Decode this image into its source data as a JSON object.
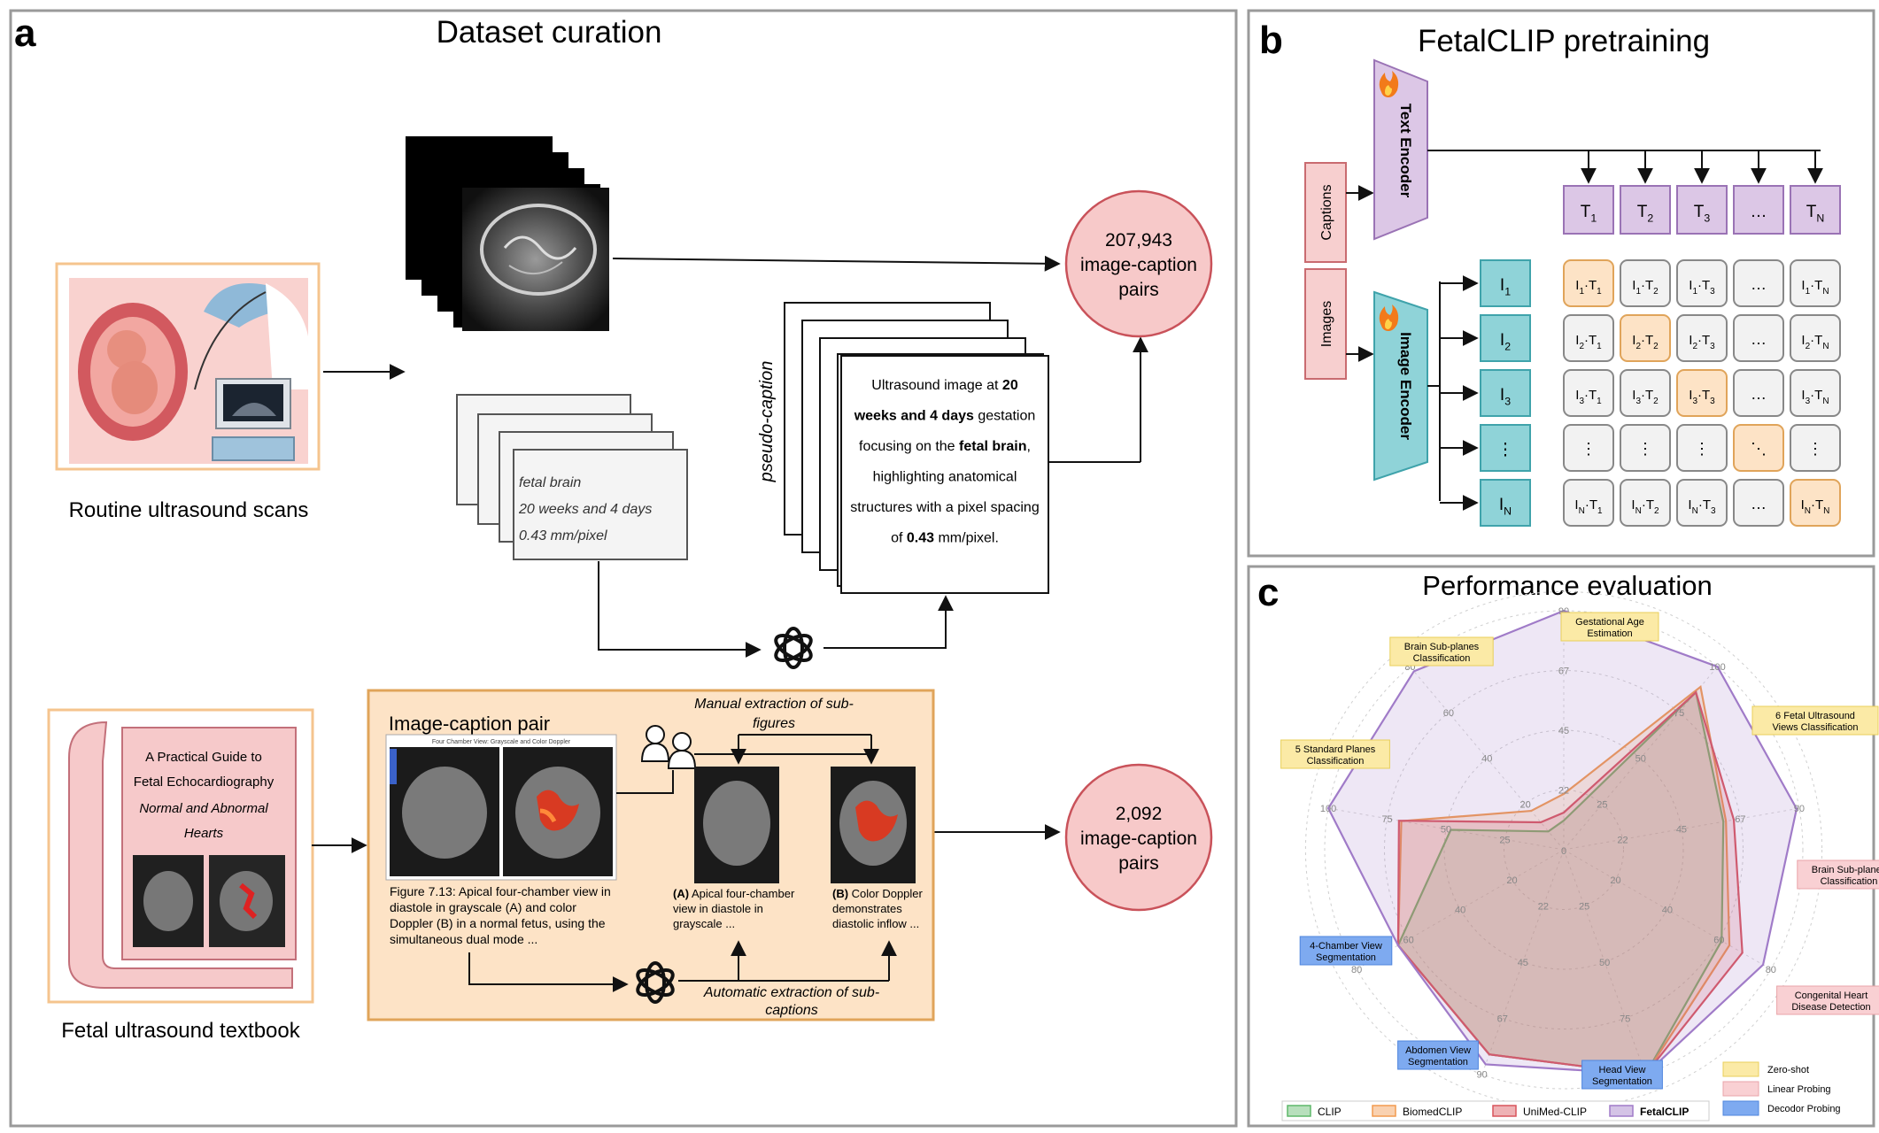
{
  "panel_a": {
    "letter": "a",
    "title": "Dataset curation",
    "routine_label": "Routine ultrasound scans",
    "textbook_label": "Fetal ultrasound textbook",
    "book_lines": [
      "A Practical Guide to",
      "Fetal Echocardiography",
      "Normal and Abnormal",
      "Hearts"
    ],
    "metadata_lines": [
      "fetal brain",
      "20 weeks and 4 days",
      "0.43 mm/pixel"
    ],
    "pseudo_caption_label": "pseudo-caption",
    "pseudo_caption_lines": [
      [
        {
          "t": "Ultrasound image at ",
          "b": false
        },
        {
          "t": "20",
          "b": true
        }
      ],
      [
        {
          "t": "weeks and 4 days",
          "b": true
        },
        {
          "t": " gestation",
          "b": false
        }
      ],
      [
        {
          "t": "focusing on the ",
          "b": false
        },
        {
          "t": "fetal brain",
          "b": true
        },
        {
          "t": ",",
          "b": false
        }
      ],
      [
        {
          "t": "highlighting anatomical",
          "b": false
        }
      ],
      [
        {
          "t": "structures with a pixel spacing",
          "b": false
        }
      ],
      [
        {
          "t": "of ",
          "b": false
        },
        {
          "t": "0.43",
          "b": true
        },
        {
          "t": " mm/pixel.",
          "b": false
        }
      ]
    ],
    "pairs_top": [
      "207,943",
      "image-caption",
      "pairs"
    ],
    "pairs_bottom": [
      "2,092",
      "image-caption",
      "pairs"
    ],
    "image_caption_pair_title": "Image-caption pair",
    "us_image_header": "Four Chamber View: Grayscale and Color Doppler",
    "figure_caption_lines": [
      "Figure 7.13: Apical four-chamber view in",
      "diastole in grayscale (A) and color",
      "Doppler (B) in a normal fetus, using the",
      "simultaneous dual mode ..."
    ],
    "manual_extraction_lines": [
      "Manual extraction of sub-",
      "figures"
    ],
    "automatic_extraction_lines": [
      "Automatic extraction of sub-",
      "captions"
    ],
    "sub_a_lines": [
      [
        {
          "t": "(A)",
          "b": true
        },
        {
          "t": " Apical four-chamber",
          "b": false
        }
      ],
      [
        {
          "t": "view in diastole in",
          "b": false
        }
      ],
      [
        {
          "t": "grayscale ...",
          "b": false
        }
      ]
    ],
    "sub_b_lines": [
      [
        {
          "t": "(B)",
          "b": true
        },
        {
          "t": " Color Doppler",
          "b": false
        }
      ],
      [
        {
          "t": "demonstrates",
          "b": false
        }
      ],
      [
        {
          "t": "diastolic inflow ...",
          "b": false
        }
      ]
    ]
  },
  "panel_b": {
    "letter": "b",
    "title": "FetalCLIP pretraining",
    "captions_label": "Captions",
    "images_label": "Images",
    "text_encoder_label": "Text Encoder",
    "image_encoder_label": "Image Encoder",
    "t_tokens": [
      [
        "T",
        "1"
      ],
      [
        "T",
        "2"
      ],
      [
        "T",
        "3"
      ],
      [
        "…",
        ""
      ],
      [
        "T",
        "N"
      ]
    ],
    "i_tokens": [
      [
        "I",
        "1"
      ],
      [
        "I",
        "2"
      ],
      [
        "I",
        "3"
      ],
      [
        "⋮",
        ""
      ],
      [
        "I",
        "N"
      ]
    ],
    "matrix_rows": [
      [
        {
          "l": "I",
          "ls": "1",
          "r": "T",
          "rs": "1",
          "hl": true
        },
        {
          "l": "I",
          "ls": "1",
          "r": "T",
          "rs": "2",
          "hl": false
        },
        {
          "l": "I",
          "ls": "1",
          "r": "T",
          "rs": "3",
          "hl": false
        },
        {
          "txt": "…",
          "hl": false
        },
        {
          "l": "I",
          "ls": "1",
          "r": "T",
          "rs": "N",
          "hl": false
        }
      ],
      [
        {
          "l": "I",
          "ls": "2",
          "r": "T",
          "rs": "1",
          "hl": false
        },
        {
          "l": "I",
          "ls": "2",
          "r": "T",
          "rs": "2",
          "hl": true
        },
        {
          "l": "I",
          "ls": "2",
          "r": "T",
          "rs": "3",
          "hl": false
        },
        {
          "txt": "…",
          "hl": false
        },
        {
          "l": "I",
          "ls": "2",
          "r": "T",
          "rs": "N",
          "hl": false
        }
      ],
      [
        {
          "l": "I",
          "ls": "3",
          "r": "T",
          "rs": "1",
          "hl": false
        },
        {
          "l": "I",
          "ls": "3",
          "r": "T",
          "rs": "2",
          "hl": false
        },
        {
          "l": "I",
          "ls": "3",
          "r": "T",
          "rs": "3",
          "hl": true
        },
        {
          "txt": "…",
          "hl": false
        },
        {
          "l": "I",
          "ls": "3",
          "r": "T",
          "rs": "N",
          "hl": false
        }
      ],
      [
        {
          "txt": "⋮",
          "hl": false
        },
        {
          "txt": "⋮",
          "hl": false
        },
        {
          "txt": "⋮",
          "hl": false
        },
        {
          "txt": "⋱",
          "hl": true
        },
        {
          "txt": "⋮",
          "hl": false
        }
      ],
      [
        {
          "l": "I",
          "ls": "N",
          "r": "T",
          "rs": "1",
          "hl": false
        },
        {
          "l": "I",
          "ls": "N",
          "r": "T",
          "rs": "2",
          "hl": false
        },
        {
          "l": "I",
          "ls": "N",
          "r": "T",
          "rs": "3",
          "hl": false
        },
        {
          "txt": "…",
          "hl": false
        },
        {
          "l": "I",
          "ls": "N",
          "r": "T",
          "rs": "N",
          "hl": true
        }
      ]
    ]
  },
  "panel_c": {
    "letter": "c",
    "title": "Performance evaluation",
    "axes": [
      {
        "label": [
          "Gestational Age",
          "Estimation"
        ],
        "ticks": [
          "22",
          "45",
          "67",
          "90"
        ],
        "kind": "zero"
      },
      {
        "label": [
          "6 Fetal Ultrasound",
          "Views Classification"
        ],
        "ticks": [
          "25",
          "50",
          "75",
          "100"
        ],
        "kind": "zero"
      },
      {
        "label": [
          "Brain Sub-planes",
          "Classification"
        ],
        "ticks": [
          "22",
          "45",
          "67",
          "90"
        ],
        "kind": "linear"
      },
      {
        "label": [
          "Congenital Heart",
          "Disease Detection"
        ],
        "ticks": [
          "20",
          "40",
          "60",
          "80"
        ],
        "kind": "linear"
      },
      {
        "label": [
          "Head View",
          "Segmentation"
        ],
        "ticks": [
          "25",
          "50",
          "75",
          "100"
        ],
        "kind": "decoder"
      },
      {
        "label": [
          "Abdomen View",
          "Segmentation"
        ],
        "ticks": [
          "22",
          "45",
          "67",
          "90"
        ],
        "kind": "decoder"
      },
      {
        "label": [
          "4-Chamber View",
          "Segmentation"
        ],
        "ticks": [
          "20",
          "40",
          "60",
          "80"
        ],
        "kind": "decoder"
      },
      {
        "label": [
          "5 Standard Planes",
          "Classification"
        ],
        "ticks": [
          "25",
          "50",
          "75",
          "100"
        ],
        "kind": "zero"
      },
      {
        "label": [
          "Brain Sub-planes",
          "Classification"
        ],
        "ticks": [
          "20",
          "40",
          "60",
          "80"
        ],
        "kind": "zero"
      }
    ],
    "center_tick": "0",
    "kind_legend": [
      {
        "key": "zero",
        "label": "Zero-shot"
      },
      {
        "key": "linear",
        "label": "Linear Probing"
      },
      {
        "key": "decoder",
        "label": "Decodor Probing"
      }
    ],
    "colors": {
      "zero": "#fbeaa6",
      "zero_border": "#e8cf5a",
      "linear": "#f9d0d3",
      "linear_border": "#e9a3a8",
      "decoder": "#7eaaf0",
      "decoder_border": "#4f85de"
    }
  },
  "chart_data": {
    "type": "radar",
    "title": "Performance evaluation",
    "axes": [
      "Gestational Age Estimation",
      "6 Fetal Ultrasound Views Classification",
      "Brain Sub-planes Classification",
      "Congenital Heart Disease Detection",
      "Head View Segmentation",
      "Abdomen View Segmentation",
      "4-Chamber View Segmentation",
      "5 Standard Planes Classification",
      "Brain Sub-planes Classification"
    ],
    "axis_max": [
      90,
      100,
      90,
      80,
      100,
      90,
      80,
      100,
      80
    ],
    "series": [
      {
        "name": "CLIP",
        "color": "#5fb86a",
        "values": [
          11,
          86,
          61,
          61,
          100,
          82,
          64,
          48,
          8
        ]
      },
      {
        "name": "BiomedCLIP",
        "color": "#f29a4f",
        "values": [
          21,
          89,
          62,
          64,
          100,
          82,
          64,
          69,
          17
        ]
      },
      {
        "name": "UniMed-CLIP",
        "color": "#d9545c",
        "values": [
          14,
          86,
          65,
          69,
          100,
          82,
          64,
          70,
          12
        ]
      },
      {
        "name": "FetalCLIP",
        "color": "#a07bc8",
        "values": [
          90,
          100,
          89,
          77,
          100,
          86,
          64,
          100,
          78
        ]
      }
    ]
  }
}
